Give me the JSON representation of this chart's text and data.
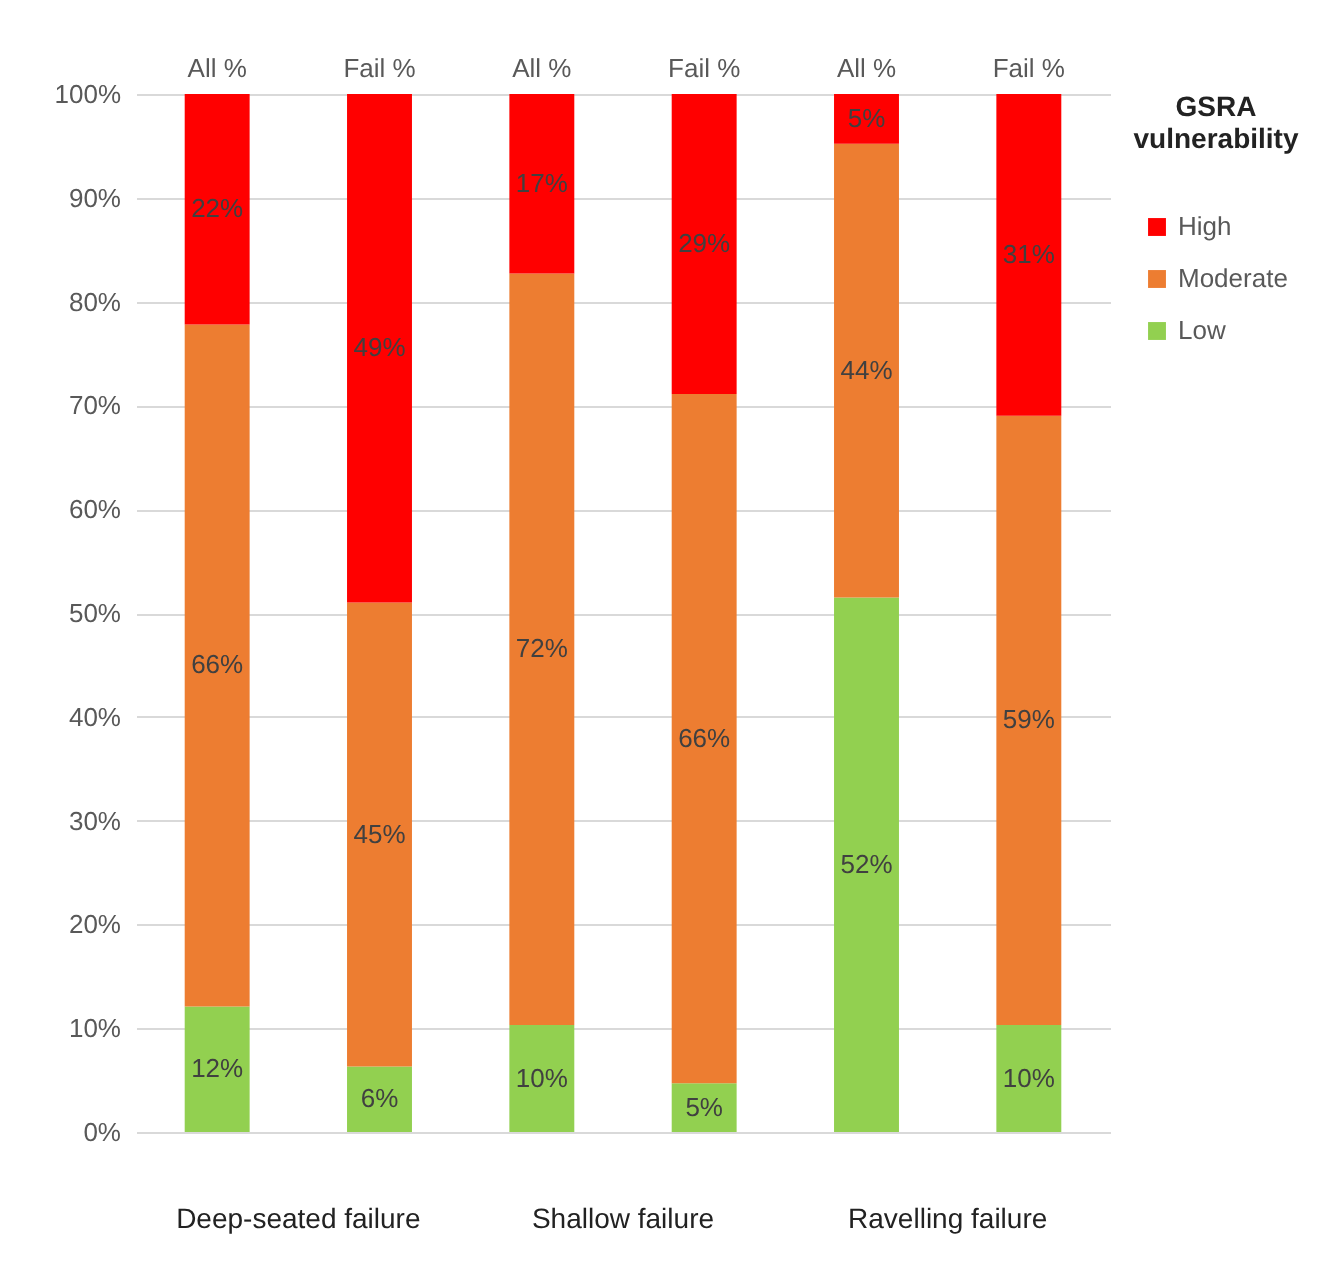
{
  "chart_data": {
    "type": "bar",
    "stacked": true,
    "legend_title": "GSRA vulnerability",
    "legend": "right",
    "grid": "y",
    "categories": [
      "All %",
      "Fail %",
      "All %",
      "Fail %",
      "All %",
      "Fail %"
    ],
    "series": [
      {
        "name": "Low",
        "color": "#92d050",
        "values": [
          12.1,
          6.3,
          10.3,
          4.7,
          51.5,
          10.3
        ],
        "value_labels": [
          "12%",
          "6%",
          "10%",
          "5%",
          "52%",
          "10%"
        ]
      },
      {
        "name": "Moderate",
        "color": "#ed7d31",
        "values": [
          65.7,
          44.7,
          72.4,
          66.4,
          43.7,
          58.7
        ],
        "value_labels": [
          "66%",
          "45%",
          "72%",
          "66%",
          "44%",
          "59%"
        ]
      },
      {
        "name": "High",
        "color": "#ff0000",
        "values": [
          22.2,
          49.0,
          17.3,
          28.9,
          4.8,
          31.0
        ],
        "value_labels": [
          "22%",
          "49%",
          "17%",
          "29%",
          "5%",
          "31%"
        ]
      }
    ],
    "ylim": [
      0,
      100
    ],
    "yticks": [
      {
        "value": 0,
        "label": "0%"
      },
      {
        "value": 10,
        "label": "10%"
      },
      {
        "value": 20,
        "label": "20%"
      },
      {
        "value": 30,
        "label": "30%"
      },
      {
        "value": 40,
        "label": "40%"
      },
      {
        "value": 50,
        "label": "50%"
      },
      {
        "value": 60,
        "label": "60%"
      },
      {
        "value": 70,
        "label": "70%"
      },
      {
        "value": 80,
        "label": "80%"
      },
      {
        "value": 90,
        "label": "90%"
      },
      {
        "value": 100,
        "label": "100%"
      }
    ],
    "annotations": [
      "Deep-seated failure",
      "Shallow failure",
      "Ravelling failure"
    ]
  }
}
